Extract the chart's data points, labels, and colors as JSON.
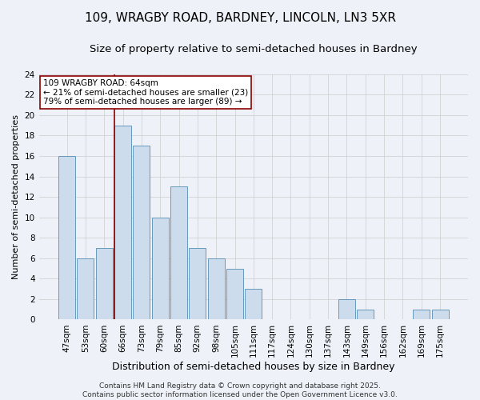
{
  "title_line1": "109, WRAGBY ROAD, BARDNEY, LINCOLN, LN3 5XR",
  "title_line2": "Size of property relative to semi-detached houses in Bardney",
  "categories": [
    "47sqm",
    "53sqm",
    "60sqm",
    "66sqm",
    "73sqm",
    "79sqm",
    "85sqm",
    "92sqm",
    "98sqm",
    "105sqm",
    "111sqm",
    "117sqm",
    "124sqm",
    "130sqm",
    "137sqm",
    "143sqm",
    "149sqm",
    "156sqm",
    "162sqm",
    "169sqm",
    "175sqm"
  ],
  "values": [
    16,
    6,
    7,
    19,
    17,
    10,
    13,
    7,
    6,
    5,
    3,
    0,
    0,
    0,
    0,
    2,
    1,
    0,
    0,
    1,
    1
  ],
  "bar_color": "#ccdcec",
  "bar_edge_color": "#6699bb",
  "ylabel": "Number of semi-detached properties",
  "xlabel": "Distribution of semi-detached houses by size in Bardney",
  "ylim": [
    0,
    24
  ],
  "yticks": [
    0,
    2,
    4,
    6,
    8,
    10,
    12,
    14,
    16,
    18,
    20,
    22,
    24
  ],
  "vline_x_index": 3,
  "vline_color": "#8b0000",
  "annotation_text": "109 WRAGBY ROAD: 64sqm\n← 21% of semi-detached houses are smaller (23)\n79% of semi-detached houses are larger (89) →",
  "annotation_box_color": "#ffffff",
  "annotation_edge_color": "#8b0000",
  "background_color": "#eef2f8",
  "footer_text": "Contains HM Land Registry data © Crown copyright and database right 2025.\nContains public sector information licensed under the Open Government Licence v3.0.",
  "title_fontsize": 11,
  "subtitle_fontsize": 9.5,
  "ylabel_fontsize": 8,
  "xlabel_fontsize": 9,
  "tick_fontsize": 7.5,
  "annotation_fontsize": 7.5,
  "footer_fontsize": 6.5
}
